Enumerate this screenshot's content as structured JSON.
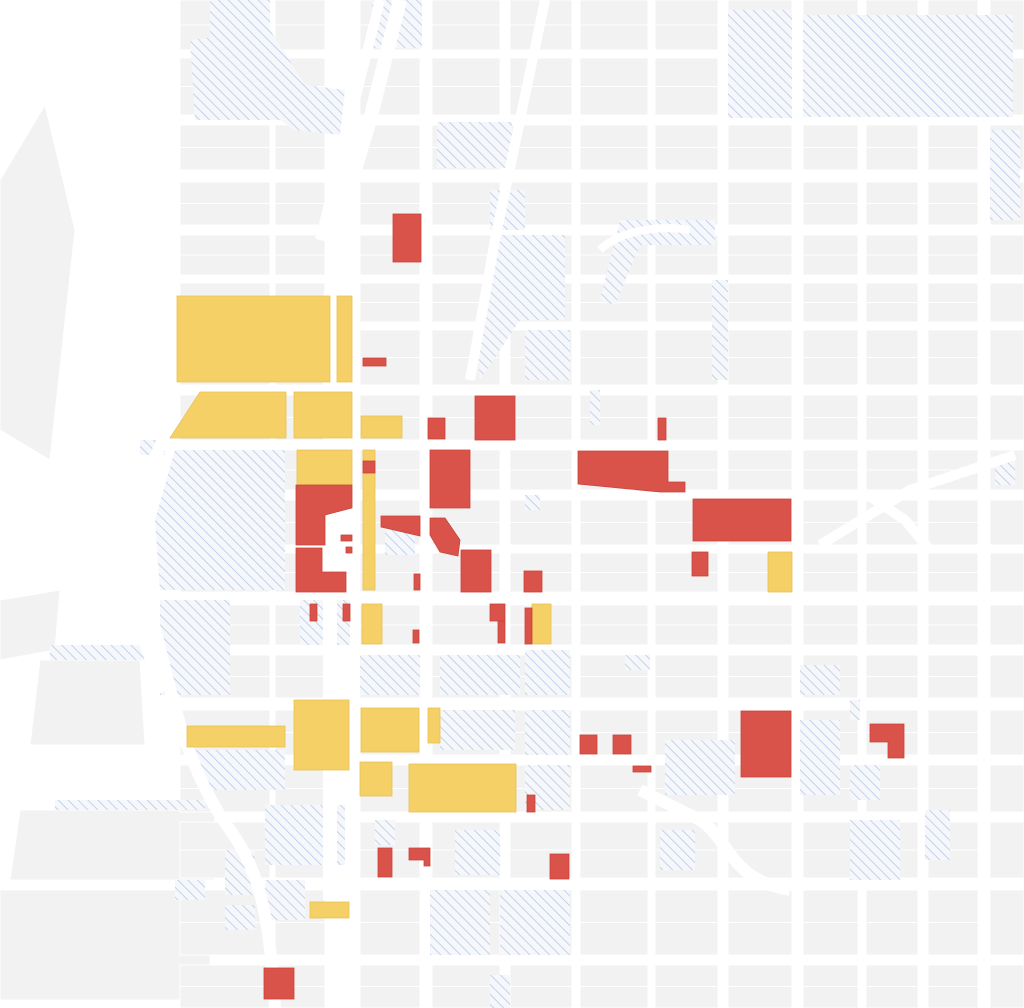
{
  "map": {
    "colors": {
      "background": "#ffffff",
      "block": "#f2f2f2",
      "hatch": "#b7c8e6",
      "yellow": "#f4d066",
      "red": "#d9534a"
    },
    "legend_categories": [
      "yellow",
      "red",
      "hatched"
    ]
  }
}
